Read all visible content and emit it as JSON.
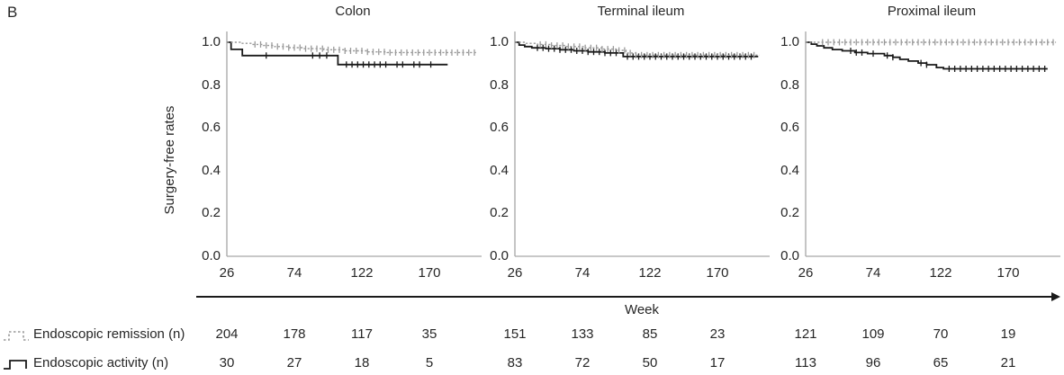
{
  "panel_label": "B",
  "ylabel": "Surgery-free rates",
  "xlabel": "Week",
  "colors": {
    "remission": "#9a9a9a",
    "activity": "#1a1a1a",
    "axis": "#a6a6a6",
    "text": "#262626"
  },
  "chart_data": [
    {
      "type": "line",
      "subtype": "kaplan-meier-step",
      "title": "Colon",
      "xlabel": "Week",
      "ylabel": "Surgery-free rates",
      "x_ticks": [
        26,
        74,
        122,
        170
      ],
      "y_ticks": [
        "1.0",
        "0.8",
        "0.6",
        "0.4",
        "0.2",
        "0.0"
      ],
      "xlim": [
        26,
        206
      ],
      "ylim": [
        0.0,
        1.0
      ],
      "grid": false,
      "legend_position": "bottom-left",
      "series": [
        {
          "name": "Endoscopic remission",
          "style": "dotted",
          "color": "#9a9a9a",
          "points": [
            [
              26,
              1.0
            ],
            [
              36,
              0.995
            ],
            [
              44,
              0.99
            ],
            [
              52,
              0.985
            ],
            [
              60,
              0.98
            ],
            [
              70,
              0.975
            ],
            [
              80,
              0.97
            ],
            [
              95,
              0.965
            ],
            [
              110,
              0.96
            ],
            [
              125,
              0.955
            ],
            [
              140,
              0.952
            ],
            [
              204,
              0.952
            ]
          ],
          "censors": [
            46,
            50,
            54,
            58,
            62,
            66,
            70,
            74,
            78,
            82,
            86,
            90,
            94,
            98,
            102,
            106,
            110,
            114,
            118,
            122,
            126,
            130,
            134,
            138,
            142,
            146,
            150,
            154,
            158,
            162,
            166,
            170,
            174,
            178,
            182,
            186,
            190,
            194,
            198,
            202
          ]
        },
        {
          "name": "Endoscopic activity",
          "style": "solid",
          "color": "#1a1a1a",
          "points": [
            [
              26,
              1.0
            ],
            [
              29,
              0.967
            ],
            [
              37,
              0.938
            ],
            [
              105,
              0.896
            ],
            [
              183,
              0.896
            ]
          ],
          "censors": [
            54,
            87,
            92,
            97,
            111,
            115,
            119,
            123,
            127,
            131,
            135,
            139,
            147,
            151,
            159,
            163,
            171
          ]
        }
      ]
    },
    {
      "type": "line",
      "subtype": "kaplan-meier-step",
      "title": "Terminal ileum",
      "xlabel": "Week",
      "ylabel": "Surgery-free rates",
      "x_ticks": [
        26,
        74,
        122,
        170
      ],
      "y_ticks": [
        "1.0",
        "0.8",
        "0.6",
        "0.4",
        "0.2",
        "0.0"
      ],
      "xlim": [
        26,
        206
      ],
      "ylim": [
        0.0,
        1.0
      ],
      "grid": false,
      "legend_position": "bottom-left",
      "series": [
        {
          "name": "Endoscopic remission",
          "style": "dotted",
          "color": "#9a9a9a",
          "points": [
            [
              26,
              1.0
            ],
            [
              34,
              0.995
            ],
            [
              42,
              0.99
            ],
            [
              52,
              0.985
            ],
            [
              62,
              0.98
            ],
            [
              75,
              0.974
            ],
            [
              88,
              0.968
            ],
            [
              98,
              0.962
            ],
            [
              105,
              0.95
            ],
            [
              112,
              0.94
            ],
            [
              200,
              0.94
            ]
          ],
          "censors": [
            44,
            48,
            52,
            56,
            60,
            64,
            68,
            72,
            76,
            80,
            84,
            88,
            92,
            96,
            100,
            104,
            108,
            112,
            116,
            120,
            124,
            128,
            132,
            136,
            140,
            144,
            148,
            152,
            156,
            160,
            164,
            168,
            172,
            176,
            180,
            184,
            188,
            192,
            196
          ]
        },
        {
          "name": "Endoscopic activity",
          "style": "solid",
          "color": "#1a1a1a",
          "points": [
            [
              26,
              1.0
            ],
            [
              29,
              0.987
            ],
            [
              33,
              0.98
            ],
            [
              38,
              0.974
            ],
            [
              48,
              0.97
            ],
            [
              58,
              0.965
            ],
            [
              68,
              0.96
            ],
            [
              78,
              0.955
            ],
            [
              90,
              0.95
            ],
            [
              103,
              0.933
            ],
            [
              199,
              0.933
            ]
          ],
          "censors": [
            42,
            46,
            50,
            54,
            58,
            62,
            66,
            70,
            74,
            78,
            82,
            86,
            90,
            94,
            98,
            106,
            110,
            114,
            118,
            122,
            126,
            130,
            134,
            138,
            142,
            146,
            150,
            154,
            158,
            162,
            166,
            170,
            174,
            178,
            182,
            186,
            190,
            194
          ]
        }
      ]
    },
    {
      "type": "line",
      "subtype": "kaplan-meier-step",
      "title": "Proximal ileum",
      "xlabel": "Week",
      "ylabel": "Surgery-free rates",
      "x_ticks": [
        26,
        74,
        122,
        170
      ],
      "y_ticks": [
        "1.0",
        "0.8",
        "0.6",
        "0.4",
        "0.2",
        "0.0"
      ],
      "xlim": [
        26,
        206
      ],
      "ylim": [
        0.0,
        1.0
      ],
      "grid": false,
      "legend_position": "bottom-left",
      "series": [
        {
          "name": "Endoscopic remission",
          "style": "dotted",
          "color": "#9a9a9a",
          "points": [
            [
              26,
              1.0
            ],
            [
              204,
              1.0
            ]
          ],
          "censors": [
            38,
            42,
            46,
            50,
            54,
            58,
            62,
            66,
            70,
            74,
            78,
            82,
            86,
            90,
            94,
            98,
            102,
            106,
            110,
            114,
            118,
            122,
            126,
            130,
            134,
            138,
            142,
            146,
            150,
            154,
            158,
            162,
            166,
            170,
            174,
            178,
            182,
            186,
            190,
            194,
            198,
            202
          ]
        },
        {
          "name": "Endoscopic activity",
          "style": "solid",
          "color": "#1a1a1a",
          "points": [
            [
              26,
              1.0
            ],
            [
              30,
              0.991
            ],
            [
              34,
              0.983
            ],
            [
              39,
              0.974
            ],
            [
              45,
              0.966
            ],
            [
              52,
              0.96
            ],
            [
              61,
              0.952
            ],
            [
              70,
              0.947
            ],
            [
              82,
              0.938
            ],
            [
              88,
              0.93
            ],
            [
              93,
              0.92
            ],
            [
              99,
              0.912
            ],
            [
              106,
              0.903
            ],
            [
              112,
              0.895
            ],
            [
              119,
              0.882
            ],
            [
              124,
              0.876
            ],
            [
              198,
              0.876
            ]
          ],
          "censors": [
            58,
            62,
            66,
            74,
            84,
            88,
            108,
            112,
            128,
            132,
            136,
            140,
            144,
            148,
            152,
            156,
            160,
            164,
            168,
            172,
            176,
            180,
            184,
            188,
            192,
            196
          ]
        }
      ]
    }
  ],
  "risk_table": {
    "rows": [
      {
        "label": "Endoscopic remission (n)",
        "values": [
          [
            204,
            178,
            117,
            35
          ],
          [
            151,
            133,
            85,
            23
          ],
          [
            121,
            109,
            70,
            19
          ]
        ]
      },
      {
        "label": "Endoscopic activity (n)",
        "values": [
          [
            30,
            27,
            18,
            5
          ],
          [
            83,
            72,
            50,
            17
          ],
          [
            113,
            96,
            65,
            21
          ]
        ]
      }
    ]
  }
}
